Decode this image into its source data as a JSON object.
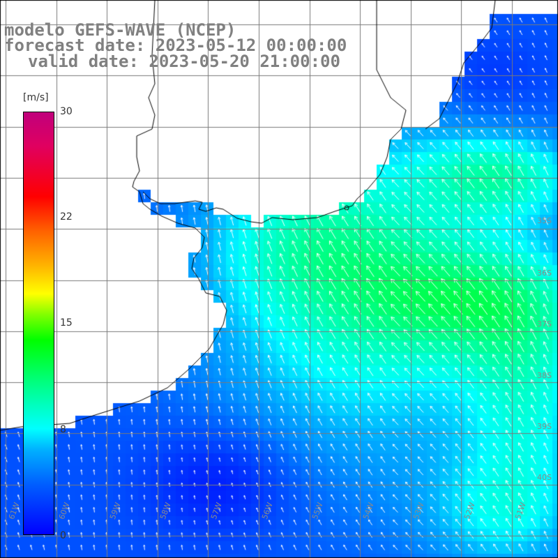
{
  "title": {
    "line1": "modelo GEFS-WAVE (NCEP)",
    "line2": "forecast date: 2023-05-12 00:00:00",
    "line3": "valid date: 2023-05-20 21:00:00"
  },
  "colorbar": {
    "units": "[m/s]",
    "ticks": [
      "30",
      "22",
      "15",
      "8",
      "0"
    ],
    "colors": [
      "#0000ff",
      "#00ffff",
      "#00ff00",
      "#ffff00",
      "#ff0000",
      "#c0007c"
    ]
  },
  "axes": {
    "lon_labels": [
      "61W",
      "60W",
      "59W",
      "58W",
      "57W",
      "56W",
      "55W",
      "54W",
      "53W",
      "52W",
      "51W"
    ],
    "lat_labels": [
      "35S",
      "36S",
      "37S",
      "38S",
      "39S",
      "40S"
    ]
  }
}
